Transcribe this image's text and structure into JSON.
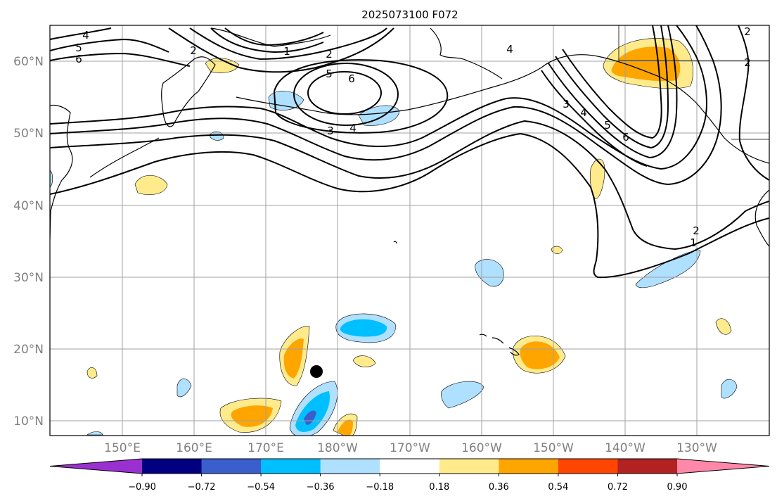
{
  "title": "2025073100 F072",
  "lat_ticks": [
    "60°N",
    "50°N",
    "40°N",
    "30°N",
    "20°N",
    "10°N"
  ],
  "lon_ticks": [
    "150°E",
    "160°E",
    "170°E",
    "180°W",
    "170°W",
    "160°W",
    "150°W",
    "140°W",
    "130°W"
  ],
  "colorbar": {
    "labels": [
      "−0.90",
      "−0.72",
      "−0.54",
      "−0.36",
      "−0.18",
      "0.18",
      "0.36",
      "0.54",
      "0.72",
      "0.90"
    ],
    "colors": [
      "#9b30d0",
      "#000080",
      "#3a5fcd",
      "#00bfff",
      "#b0e0ff",
      "#ffffff",
      "#ffeb8c",
      "#ffa500",
      "#ff4500",
      "#b22222",
      "#ff88aa"
    ]
  },
  "contour_labels": [
    {
      "id": "c-4-nw",
      "text": "4"
    },
    {
      "id": "c-5-nw",
      "text": "5"
    },
    {
      "id": "c-6-nw",
      "text": "6"
    },
    {
      "id": "c-2-nw",
      "text": "2"
    },
    {
      "id": "c-1-n",
      "text": "1"
    },
    {
      "id": "c-2-n",
      "text": "2"
    },
    {
      "id": "c-5-c",
      "text": "5"
    },
    {
      "id": "c-6-c",
      "text": "6"
    },
    {
      "id": "c-3-c",
      "text": "3"
    },
    {
      "id": "c-4-c",
      "text": "4"
    },
    {
      "id": "c-4-ak",
      "text": "4"
    },
    {
      "id": "c-3-e",
      "text": "3"
    },
    {
      "id": "c-4-e",
      "text": "4"
    },
    {
      "id": "c-5-e",
      "text": "5"
    },
    {
      "id": "c-6-e",
      "text": "6"
    },
    {
      "id": "c-2-ne",
      "text": "2"
    },
    {
      "id": "c-2-ne2",
      "text": "2"
    },
    {
      "id": "c-2-se",
      "text": "2"
    },
    {
      "id": "c-1-se",
      "text": "1"
    }
  ],
  "colors": {
    "frame": "#000000",
    "grid": "#a0a0a0",
    "pos1": "#ffeb8c",
    "pos2": "#ffa500",
    "neg1": "#b0e0ff",
    "neg2": "#00bfff",
    "neg3": "#3a5fcd"
  }
}
